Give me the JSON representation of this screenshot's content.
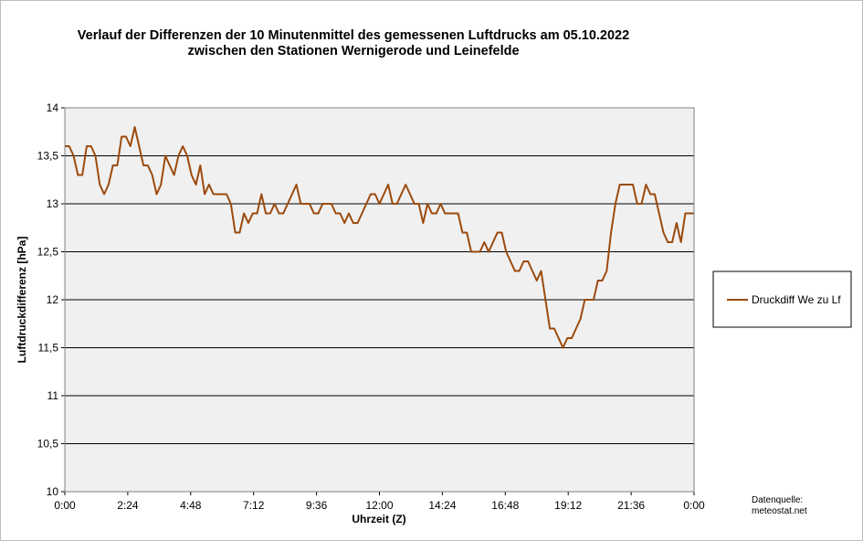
{
  "chart_data": {
    "type": "line",
    "title": "Verlauf der Differenzen der 10 Minutenmittel des gemessenen Luftdrucks am 05.10.2022",
    "subtitle": "zwischen den Stationen Wernigerode und Leinefelde",
    "xlabel": "Uhrzeit (Z)",
    "ylabel": "Luftdruckdifferenz [hPa]",
    "x_tick_labels": [
      "0:00",
      "2:24",
      "4:48",
      "7:12",
      "9:36",
      "12:00",
      "14:24",
      "16:48",
      "19:12",
      "21:36",
      "0:00"
    ],
    "y_tick_labels": [
      "10",
      "10,5",
      "11",
      "11,5",
      "12",
      "12,5",
      "13",
      "13,5",
      "14"
    ],
    "ylim": [
      10,
      14
    ],
    "xlim_minutes": [
      0,
      1440
    ],
    "grid": "horizontal",
    "legend_position": "right",
    "source_lines": [
      "Datenquelle:",
      "meteostat.net"
    ],
    "series": [
      {
        "name": "Druckdiff We zu Lf",
        "color": "#9c4a0c",
        "interval_minutes": 10,
        "values": [
          13.6,
          13.6,
          13.5,
          13.3,
          13.3,
          13.6,
          13.6,
          13.5,
          13.2,
          13.1,
          13.2,
          13.4,
          13.4,
          13.7,
          13.7,
          13.6,
          13.8,
          13.6,
          13.4,
          13.4,
          13.3,
          13.1,
          13.2,
          13.5,
          13.4,
          13.3,
          13.5,
          13.6,
          13.5,
          13.3,
          13.2,
          13.4,
          13.1,
          13.2,
          13.1,
          13.1,
          13.1,
          13.1,
          13.0,
          12.7,
          12.7,
          12.9,
          12.8,
          12.9,
          12.9,
          13.1,
          12.9,
          12.9,
          13.0,
          12.9,
          12.9,
          13.0,
          13.1,
          13.2,
          13.0,
          13.0,
          13.0,
          12.9,
          12.9,
          13.0,
          13.0,
          13.0,
          12.9,
          12.9,
          12.8,
          12.9,
          12.8,
          12.8,
          12.9,
          13.0,
          13.1,
          13.1,
          13.0,
          13.1,
          13.2,
          13.0,
          13.0,
          13.1,
          13.2,
          13.1,
          13.0,
          13.0,
          12.8,
          13.0,
          12.9,
          12.9,
          13.0,
          12.9,
          12.9,
          12.9,
          12.9,
          12.7,
          12.7,
          12.5,
          12.5,
          12.5,
          12.6,
          12.5,
          12.6,
          12.7,
          12.7,
          12.5,
          12.4,
          12.3,
          12.3,
          12.4,
          12.4,
          12.3,
          12.2,
          12.3,
          12.0,
          11.7,
          11.7,
          11.6,
          11.5,
          11.6,
          11.6,
          11.7,
          11.8,
          12.0,
          12.0,
          12.0,
          12.2,
          12.2,
          12.3,
          12.7,
          13.0,
          13.2,
          13.2,
          13.2,
          13.2,
          13.0,
          13.0,
          13.2,
          13.1,
          13.1,
          12.9,
          12.7,
          12.6,
          12.6,
          12.8,
          12.6,
          12.9,
          12.9,
          12.9
        ]
      }
    ]
  }
}
